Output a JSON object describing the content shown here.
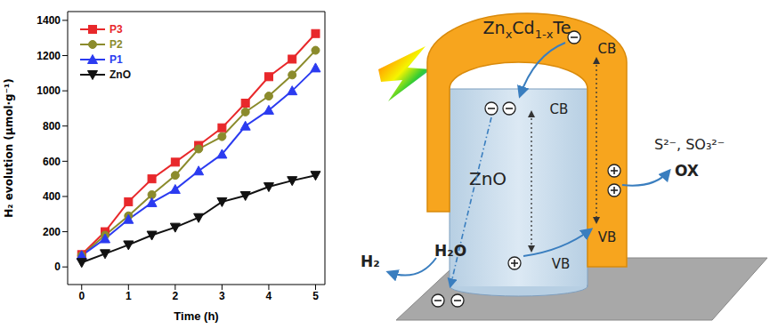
{
  "chart_data": {
    "type": "line",
    "x": [
      0,
      0.5,
      1,
      1.5,
      2,
      2.5,
      3,
      3.5,
      4,
      4.5,
      5
    ],
    "series": [
      {
        "name": "P3",
        "color": "#e8282b",
        "marker": "square",
        "values": [
          70,
          200,
          370,
          500,
          595,
          690,
          790,
          930,
          1080,
          1180,
          1325
        ]
      },
      {
        "name": "P2",
        "color": "#8b8b2c",
        "marker": "circle",
        "values": [
          65,
          180,
          290,
          410,
          520,
          670,
          740,
          880,
          970,
          1090,
          1230
        ]
      },
      {
        "name": "P1",
        "color": "#2b3bf0",
        "marker": "triangle",
        "values": [
          65,
          160,
          270,
          365,
          440,
          545,
          640,
          800,
          890,
          1000,
          1130
        ]
      },
      {
        "name": "ZnO",
        "color": "#111111",
        "marker": "triangle-down",
        "values": [
          25,
          75,
          125,
          180,
          225,
          280,
          370,
          405,
          455,
          490,
          520
        ]
      }
    ],
    "x_label": "Time (h)",
    "y_label": "H₂ evolution (μmol·g⁻¹)",
    "xlim": [
      -0.3,
      5.2
    ],
    "xticks": [
      0,
      1,
      2,
      3,
      4,
      5
    ],
    "ylim": [
      -100,
      1450
    ],
    "yticks": [
      0,
      200,
      400,
      600,
      800,
      1000,
      1200,
      1400
    ],
    "legend": "upper left",
    "grid": false
  },
  "diagram": {
    "shell": [
      {
        "text": "Zn"
      },
      {
        "text": "x",
        "sub": true
      },
      {
        "text": "Cd"
      },
      {
        "text": "1-x",
        "sub": true
      },
      {
        "text": "Te"
      }
    ],
    "shell_cb": "CB",
    "shell_vb": "VB",
    "core": "ZnO",
    "core_cb": "CB",
    "core_vb": "VB",
    "sacrificial": "S²⁻, SO₃²⁻",
    "oxidation": "OX",
    "product": "H₂",
    "reactant": "H₂O"
  }
}
